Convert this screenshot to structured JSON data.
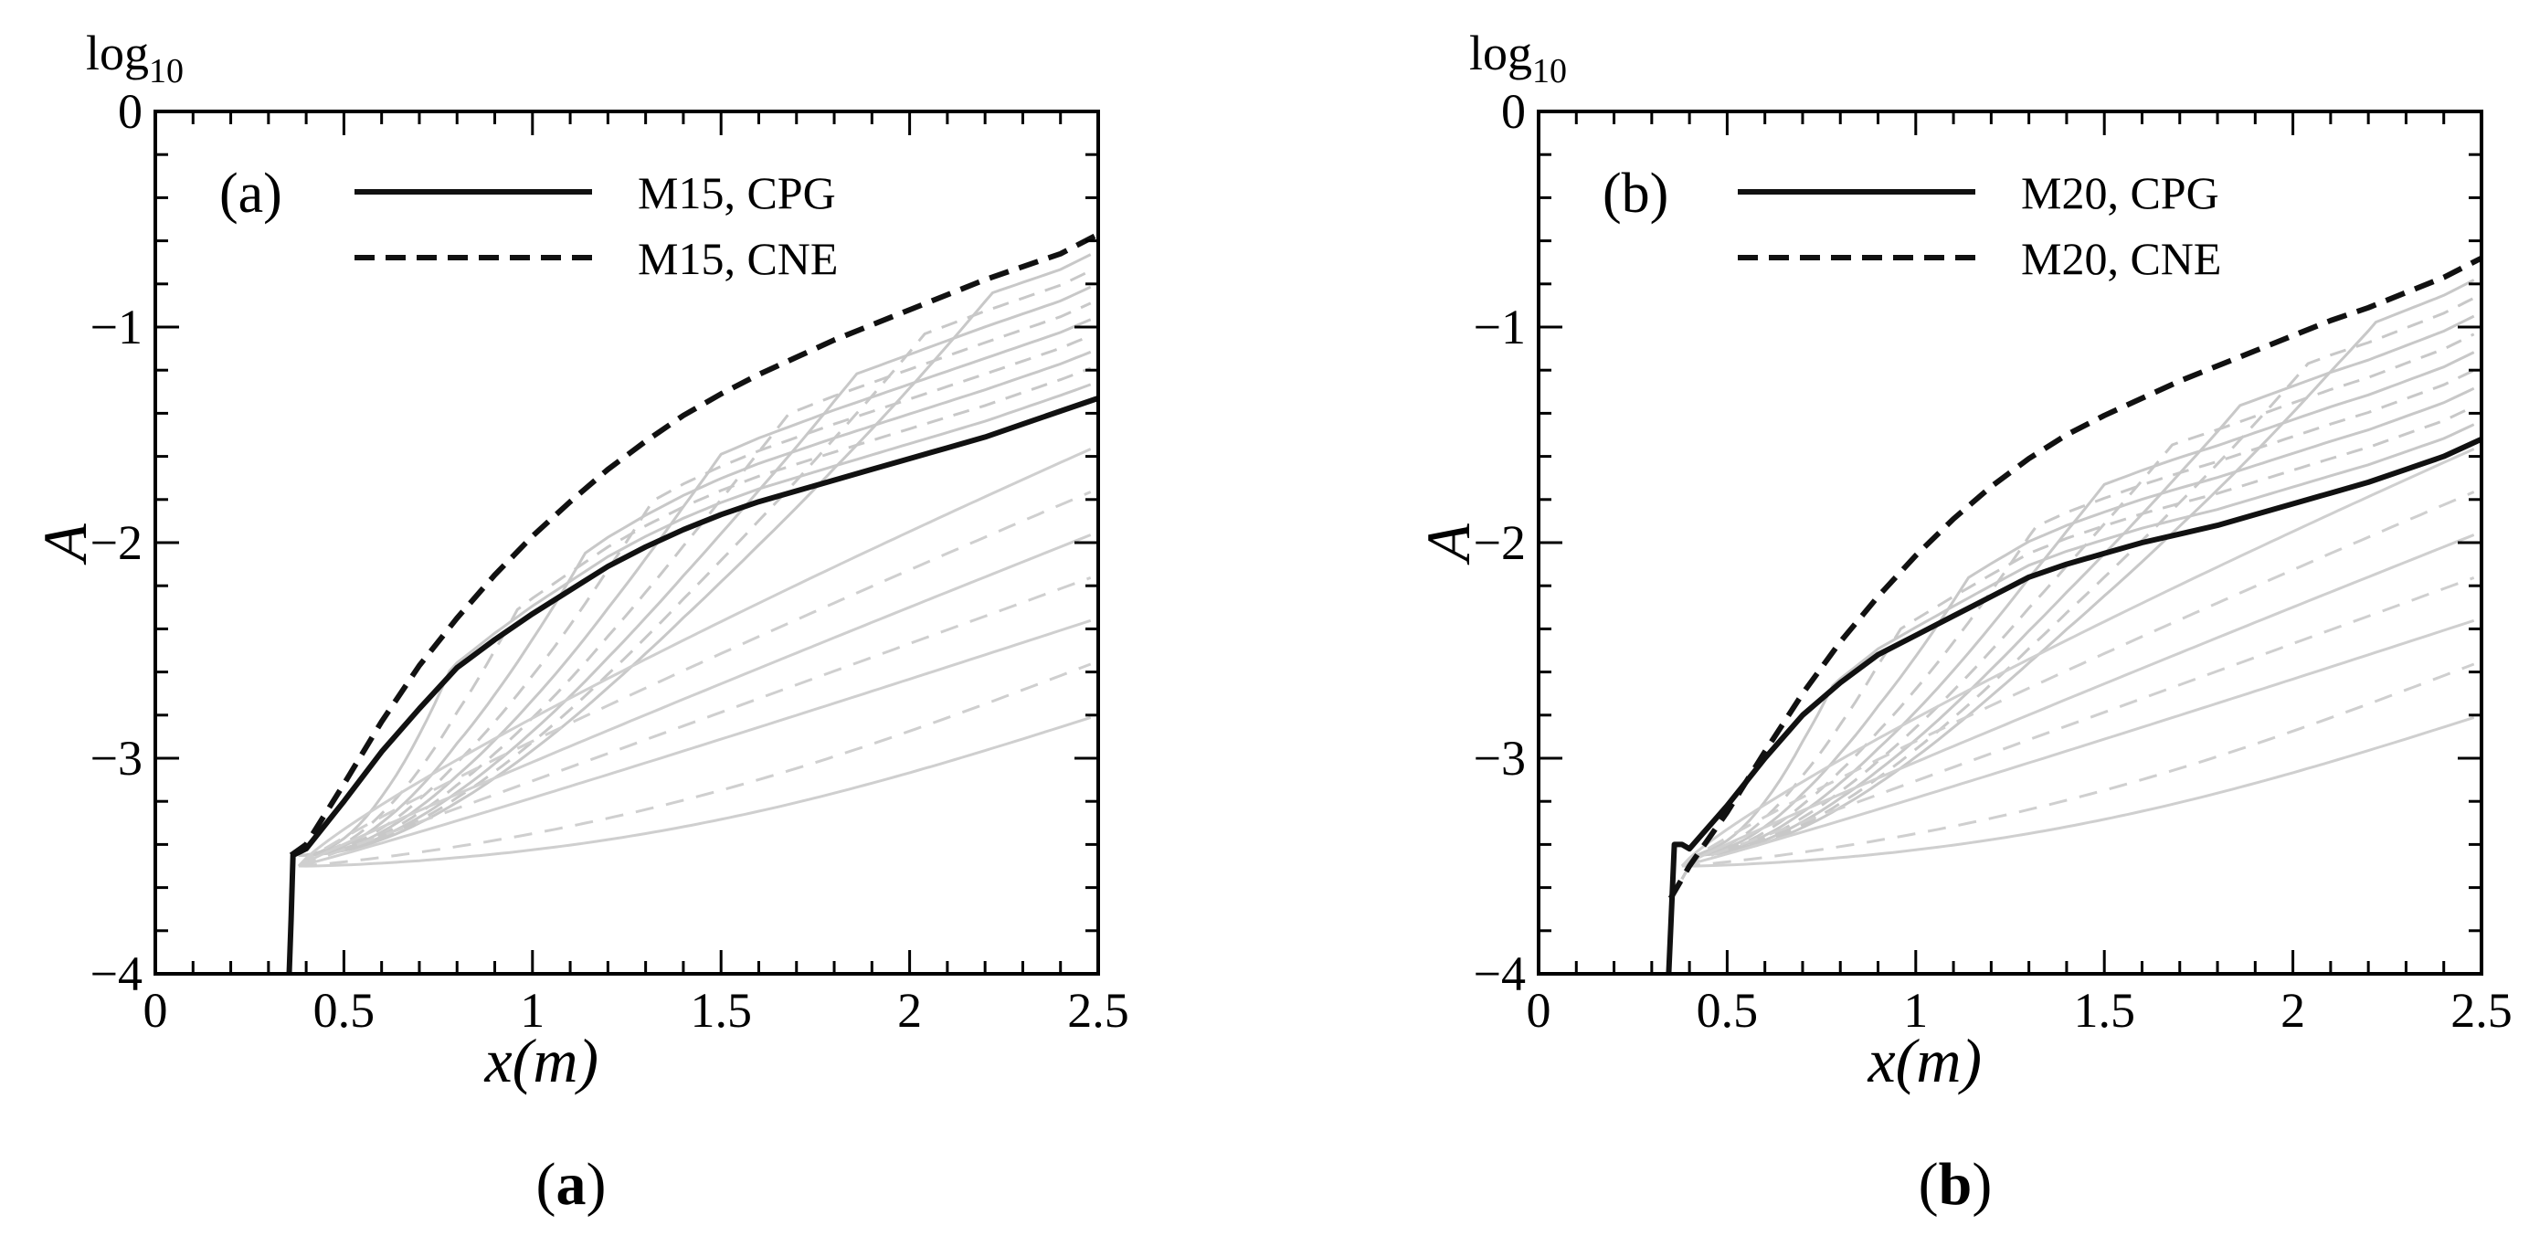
{
  "chart_data": [
    {
      "type": "line",
      "panel": "a",
      "panel_tag": "(a)",
      "caption_open": "(",
      "caption_letter": "a",
      "caption_close": ")",
      "log_label": "log",
      "log_sub": "10",
      "xlabel": "x(m)",
      "ylabel": "A",
      "xlim": [
        0,
        2.5
      ],
      "ylim": [
        -4,
        0
      ],
      "xticks": [
        "0",
        "0.5",
        "1",
        "1.5",
        "2",
        "2.5"
      ],
      "yticks": [
        "0",
        "−1",
        "−2",
        "−3",
        "−4"
      ],
      "series": [
        {
          "name": "M15, CPG",
          "style": "solid",
          "x": [
            0.355,
            0.36,
            0.365,
            0.4,
            0.5,
            0.6,
            0.7,
            0.8,
            0.9,
            1.0,
            1.1,
            1.2,
            1.3,
            1.4,
            1.5,
            1.6,
            1.7,
            1.8,
            1.9,
            2.0,
            2.1,
            2.2,
            2.3,
            2.4,
            2.5
          ],
          "y": [
            -4.0,
            -3.75,
            -3.45,
            -3.42,
            -3.2,
            -2.97,
            -2.77,
            -2.58,
            -2.45,
            -2.33,
            -2.22,
            -2.11,
            -2.02,
            -1.94,
            -1.87,
            -1.81,
            -1.76,
            -1.71,
            -1.66,
            -1.61,
            -1.56,
            -1.51,
            -1.45,
            -1.39,
            -1.33
          ]
        },
        {
          "name": "M15, CNE",
          "style": "dashed",
          "x": [
            0.36,
            0.4,
            0.5,
            0.6,
            0.7,
            0.8,
            0.9,
            1.0,
            1.1,
            1.2,
            1.3,
            1.4,
            1.5,
            1.6,
            1.7,
            1.8,
            1.9,
            2.0,
            2.1,
            2.2,
            2.3,
            2.4,
            2.5
          ],
          "y": [
            -3.45,
            -3.4,
            -3.12,
            -2.83,
            -2.57,
            -2.35,
            -2.15,
            -1.97,
            -1.81,
            -1.66,
            -1.53,
            -1.41,
            -1.31,
            -1.22,
            -1.14,
            -1.06,
            -0.99,
            -0.92,
            -0.85,
            -0.78,
            -0.72,
            -0.66,
            -0.57
          ]
        }
      ]
    },
    {
      "type": "line",
      "panel": "b",
      "panel_tag": "(b)",
      "caption_open": "(",
      "caption_letter": "b",
      "caption_close": ")",
      "log_label": "log",
      "log_sub": "10",
      "xlabel": "x(m)",
      "ylabel": "A",
      "xlim": [
        0,
        2.5
      ],
      "ylim": [
        -4,
        0
      ],
      "xticks": [
        "0",
        "0.5",
        "1",
        "1.5",
        "2",
        "2.5"
      ],
      "yticks": [
        "0",
        "−1",
        "−2",
        "−3",
        "−4"
      ],
      "series": [
        {
          "name": "M20, CPG",
          "style": "solid",
          "x": [
            0.345,
            0.35,
            0.36,
            0.38,
            0.4,
            0.5,
            0.6,
            0.7,
            0.8,
            0.9,
            1.0,
            1.1,
            1.2,
            1.3,
            1.4,
            1.5,
            1.6,
            1.7,
            1.8,
            1.9,
            2.0,
            2.1,
            2.2,
            2.3,
            2.4,
            2.5
          ],
          "y": [
            -4.0,
            -3.8,
            -3.4,
            -3.4,
            -3.42,
            -3.22,
            -3.0,
            -2.8,
            -2.65,
            -2.52,
            -2.43,
            -2.34,
            -2.25,
            -2.16,
            -2.1,
            -2.05,
            -2.0,
            -1.96,
            -1.92,
            -1.87,
            -1.82,
            -1.77,
            -1.72,
            -1.66,
            -1.6,
            -1.52
          ]
        },
        {
          "name": "M20, CNE",
          "style": "dashed",
          "x": [
            0.35,
            0.4,
            0.5,
            0.6,
            0.7,
            0.8,
            0.9,
            1.0,
            1.1,
            1.2,
            1.3,
            1.4,
            1.5,
            1.6,
            1.7,
            1.8,
            1.9,
            2.0,
            2.1,
            2.2,
            2.3,
            2.4,
            2.5
          ],
          "y": [
            -3.65,
            -3.5,
            -3.25,
            -2.97,
            -2.7,
            -2.46,
            -2.25,
            -2.06,
            -1.89,
            -1.74,
            -1.61,
            -1.5,
            -1.41,
            -1.33,
            -1.25,
            -1.18,
            -1.11,
            -1.04,
            -0.97,
            -0.91,
            -0.84,
            -0.77,
            -0.68
          ]
        }
      ]
    }
  ]
}
